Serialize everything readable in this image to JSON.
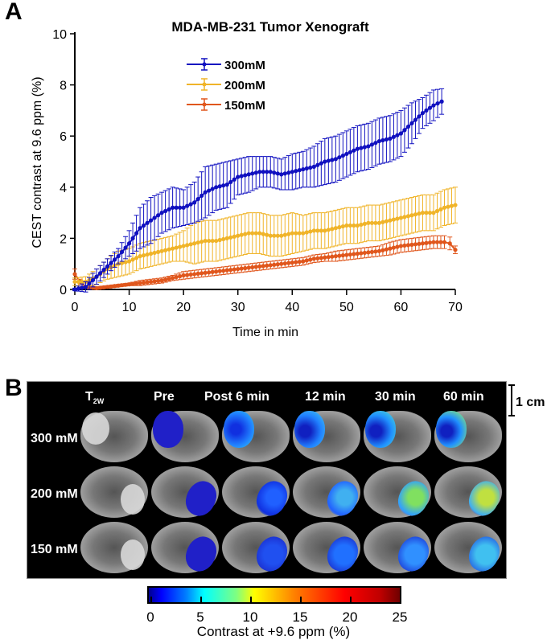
{
  "panel_a": {
    "letter": "A"
  },
  "panel_b": {
    "letter": "B",
    "columns": [
      "T2W",
      "Pre",
      "Post  6 min",
      "12 min",
      "30 min",
      "60 min"
    ],
    "column_main": [
      "T",
      "Pre",
      "Post  6 min",
      "12 min",
      "30 min",
      "60 min"
    ],
    "column_sub": [
      "2W",
      "",
      "",
      "",
      "",
      ""
    ],
    "rows": [
      "300 mM",
      "200 mM",
      "150 mM"
    ],
    "scale_bar_label": "1 cm",
    "colorbar": {
      "title": "Contrast at +9.6 ppm (%)",
      "ticks": [
        "0",
        "5",
        "10",
        "15",
        "20",
        "25"
      ],
      "range": [
        0,
        25
      ]
    }
  },
  "chart_data": {
    "type": "line",
    "title": "MDA-MB-231 Tumor Xenograft",
    "xlabel": "Time in min",
    "ylabel": "CEST contrast at 9.6 ppm (%)",
    "xlim": [
      0,
      70
    ],
    "ylim": [
      0,
      10
    ],
    "xticks": [
      0,
      10,
      20,
      30,
      40,
      50,
      60,
      70
    ],
    "yticks": [
      0,
      2,
      4,
      6,
      8,
      10
    ],
    "grid": false,
    "legend_position": "top-left",
    "series": [
      {
        "name": "300mM",
        "color": "#1010c0",
        "x": [
          0,
          2,
          4,
          6,
          8,
          10,
          12,
          14,
          16,
          18,
          20,
          22,
          24,
          26,
          28,
          30,
          32,
          34,
          36,
          38,
          40,
          42,
          44,
          46,
          48,
          50,
          52,
          54,
          56,
          58,
          60,
          62,
          64,
          66,
          67.5
        ],
        "y": [
          0.0,
          0.1,
          0.5,
          0.9,
          1.3,
          1.8,
          2.4,
          2.7,
          3.0,
          3.2,
          3.2,
          3.4,
          3.8,
          4.0,
          4.1,
          4.4,
          4.5,
          4.6,
          4.6,
          4.5,
          4.6,
          4.7,
          4.8,
          5.0,
          5.1,
          5.3,
          5.5,
          5.6,
          5.8,
          5.9,
          6.1,
          6.5,
          6.9,
          7.2,
          7.35
        ],
        "err": [
          0.05,
          0.2,
          0.3,
          0.3,
          0.3,
          0.5,
          0.8,
          0.9,
          0.8,
          0.8,
          0.7,
          0.8,
          1.0,
          0.9,
          0.9,
          0.7,
          0.7,
          0.6,
          0.6,
          0.6,
          0.7,
          0.7,
          0.8,
          0.9,
          0.9,
          0.9,
          0.9,
          0.9,
          0.9,
          0.9,
          0.9,
          0.8,
          0.6,
          0.6,
          0.5
        ]
      },
      {
        "name": "200mM",
        "color": "#f0b429",
        "x": [
          0,
          2,
          4,
          6,
          8,
          10,
          12,
          14,
          16,
          18,
          20,
          22,
          24,
          26,
          28,
          30,
          32,
          34,
          36,
          38,
          40,
          42,
          44,
          46,
          48,
          50,
          52,
          54,
          56,
          58,
          60,
          62,
          64,
          66,
          68,
          70
        ],
        "y": [
          0.3,
          0.3,
          0.5,
          0.8,
          1.0,
          1.1,
          1.3,
          1.4,
          1.5,
          1.6,
          1.7,
          1.8,
          1.9,
          1.9,
          2.0,
          2.1,
          2.2,
          2.2,
          2.1,
          2.1,
          2.2,
          2.2,
          2.3,
          2.3,
          2.4,
          2.5,
          2.5,
          2.6,
          2.6,
          2.7,
          2.8,
          2.9,
          3.0,
          3.0,
          3.2,
          3.3
        ],
        "err": [
          0.15,
          0.2,
          0.3,
          0.4,
          0.5,
          0.5,
          0.5,
          0.5,
          0.5,
          0.5,
          0.6,
          0.8,
          0.8,
          0.8,
          0.8,
          0.8,
          0.8,
          0.8,
          0.8,
          0.8,
          0.8,
          0.7,
          0.7,
          0.7,
          0.7,
          0.7,
          0.7,
          0.7,
          0.7,
          0.7,
          0.7,
          0.7,
          0.7,
          0.7,
          0.7,
          0.7
        ]
      },
      {
        "name": "150mM",
        "color": "#e0561c",
        "x": [
          0,
          1,
          2,
          4,
          6,
          8,
          10,
          12,
          14,
          16,
          18,
          20,
          22,
          24,
          26,
          28,
          30,
          32,
          34,
          36,
          38,
          40,
          42,
          44,
          46,
          48,
          50,
          52,
          54,
          56,
          58,
          60,
          62,
          64,
          66,
          68,
          69,
          70
        ],
        "y": [
          0.6,
          0.3,
          0.1,
          0.05,
          0.1,
          0.15,
          0.2,
          0.25,
          0.3,
          0.35,
          0.45,
          0.55,
          0.6,
          0.65,
          0.7,
          0.75,
          0.8,
          0.85,
          0.9,
          0.95,
          1.0,
          1.05,
          1.1,
          1.2,
          1.25,
          1.3,
          1.35,
          1.4,
          1.45,
          1.5,
          1.6,
          1.7,
          1.75,
          1.8,
          1.85,
          1.85,
          1.8,
          1.55
        ],
        "err": [
          0.2,
          0.1,
          0.05,
          0.05,
          0.05,
          0.05,
          0.05,
          0.1,
          0.1,
          0.1,
          0.1,
          0.15,
          0.15,
          0.15,
          0.15,
          0.15,
          0.15,
          0.15,
          0.15,
          0.15,
          0.15,
          0.15,
          0.15,
          0.15,
          0.15,
          0.2,
          0.2,
          0.2,
          0.2,
          0.2,
          0.25,
          0.25,
          0.25,
          0.25,
          0.25,
          0.25,
          0.25,
          0.15
        ]
      }
    ]
  }
}
